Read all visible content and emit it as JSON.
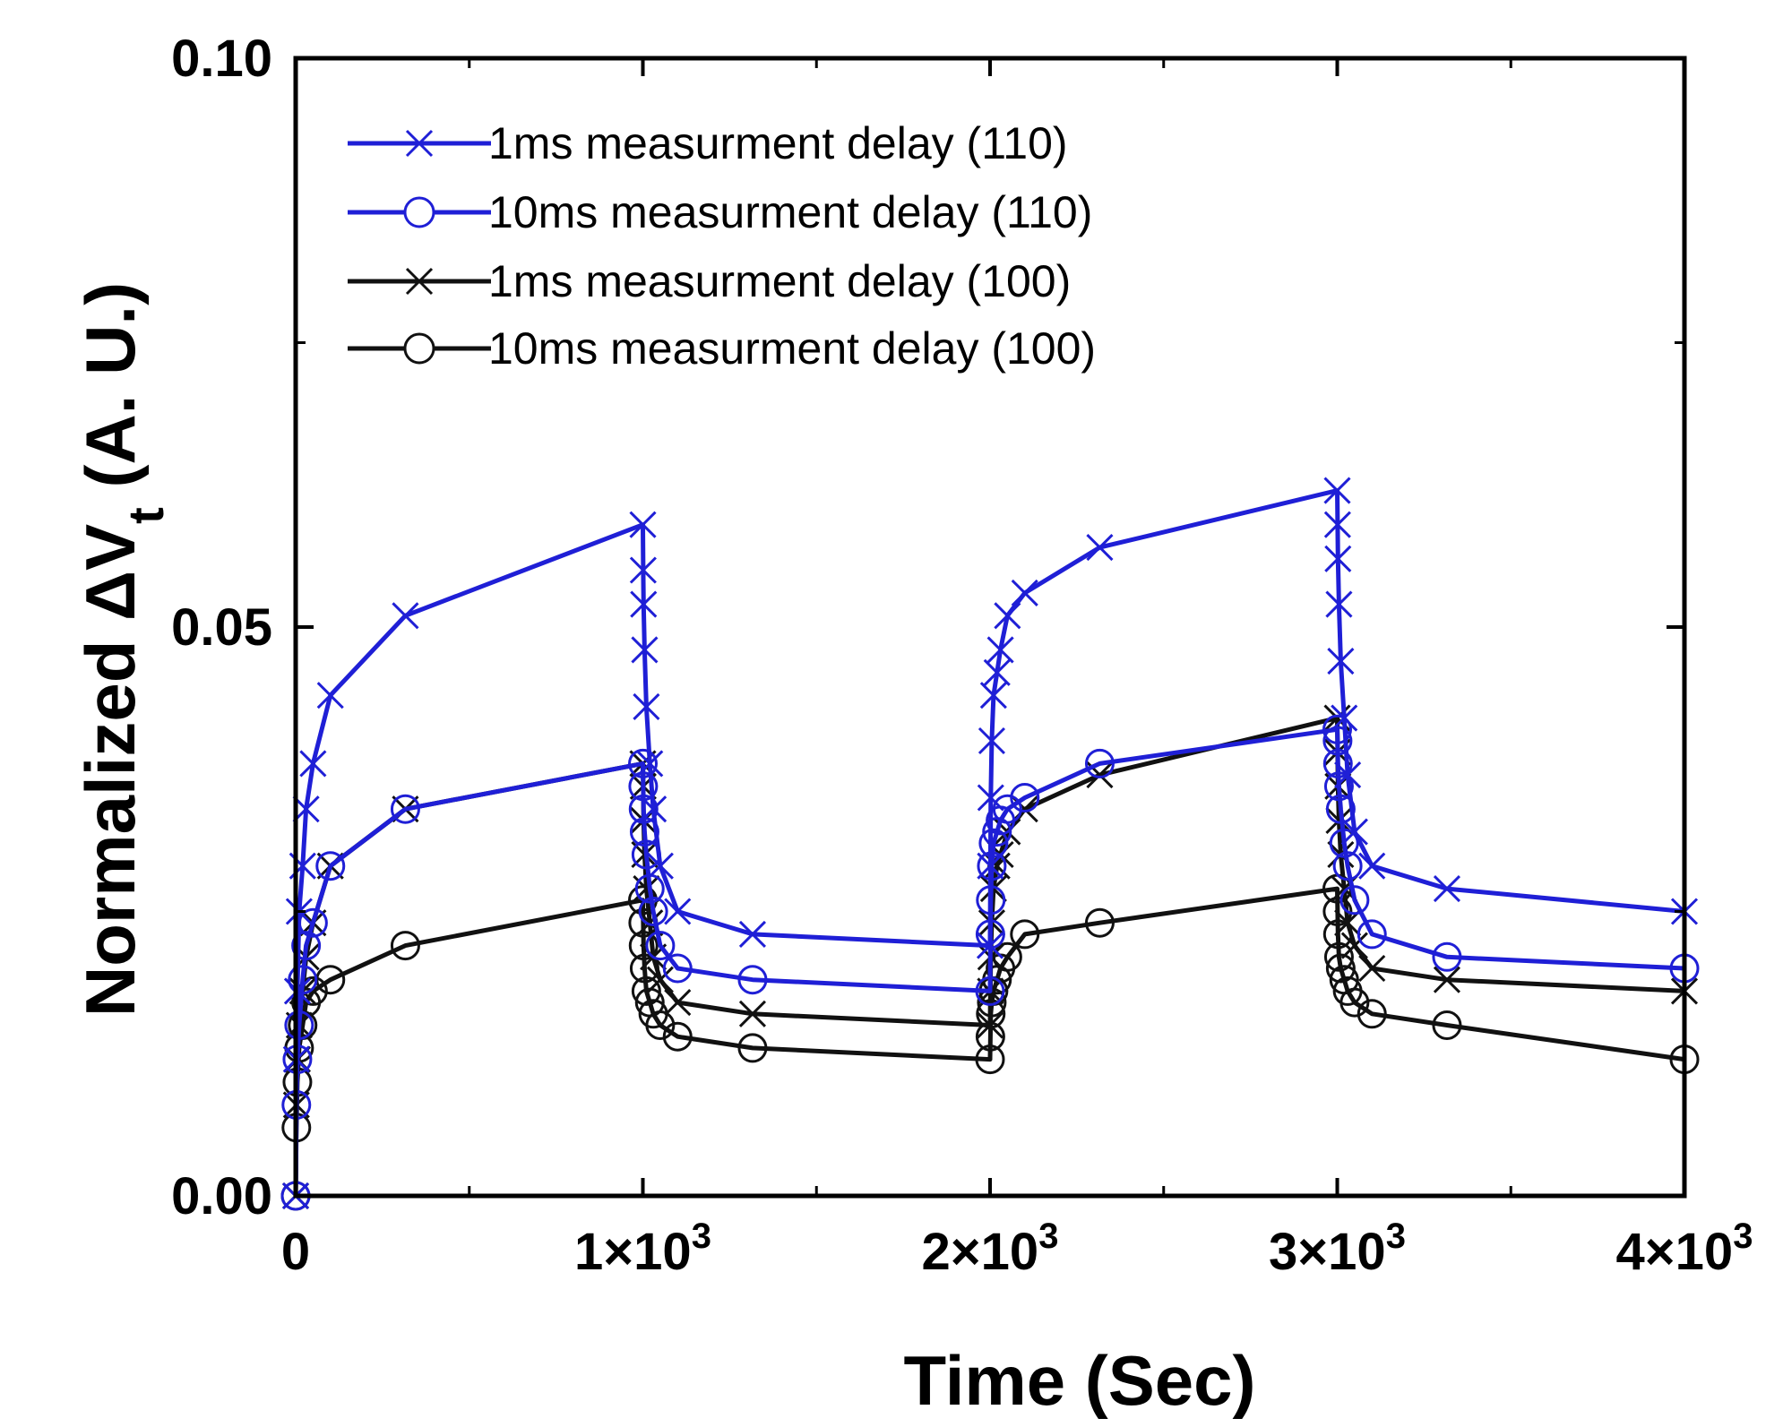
{
  "chart_data": {
    "type": "line",
    "title": "",
    "xlabel": "Time (Sec)",
    "ylabel_prefix": "Normalized ",
    "ylabel_symbol": "ΔV",
    "ylabel_subscript": "t",
    "ylabel_suffix": " (A. U.)",
    "xlim": [
      0,
      4000
    ],
    "ylim": [
      0,
      0.1
    ],
    "x_ticks": [
      {
        "value": 0,
        "base": "0",
        "exp": ""
      },
      {
        "value": 1000,
        "base": "1×10",
        "exp": "3"
      },
      {
        "value": 2000,
        "base": "2×10",
        "exp": "3"
      },
      {
        "value": 3000,
        "base": "3×10",
        "exp": "3"
      },
      {
        "value": 4000,
        "base": "4×10",
        "exp": "3"
      }
    ],
    "x_minor_ticks": [
      500,
      1500,
      2500,
      3500
    ],
    "y_ticks": [
      {
        "value": 0,
        "label": "0.00"
      },
      {
        "value": 0.05,
        "label": "0.05"
      },
      {
        "value": 0.1,
        "label": "0.10"
      }
    ],
    "y_minor_ticks": [
      0.025,
      0.075
    ],
    "grid": false,
    "legend_position": "top-left",
    "series": [
      {
        "name": "1ms measurment delay (110)",
        "color": "#1f1fd6",
        "marker": "x",
        "x": [
          0,
          2,
          5,
          10,
          20,
          30,
          50,
          100,
          316,
          1000,
          1001,
          1002,
          1005,
          1010,
          1020,
          1030,
          1050,
          1100,
          1316,
          2000,
          2001,
          2002,
          2005,
          2010,
          2020,
          2030,
          2050,
          2100,
          2316,
          3000,
          3001,
          3002,
          3005,
          3010,
          3020,
          3030,
          3050,
          3100,
          3316,
          4000
        ],
        "y": [
          0.0,
          0.012,
          0.018,
          0.025,
          0.029,
          0.034,
          0.038,
          0.044,
          0.051,
          0.059,
          0.055,
          0.052,
          0.048,
          0.043,
          0.038,
          0.034,
          0.029,
          0.025,
          0.023,
          0.022,
          0.029,
          0.035,
          0.04,
          0.044,
          0.046,
          0.048,
          0.051,
          0.053,
          0.057,
          0.062,
          0.059,
          0.056,
          0.052,
          0.047,
          0.042,
          0.037,
          0.032,
          0.029,
          0.027,
          0.025
        ]
      },
      {
        "name": "10ms measurment delay (110)",
        "color": "#1f1fd6",
        "marker": "o",
        "x": [
          0,
          2,
          5,
          10,
          20,
          30,
          50,
          100,
          316,
          1000,
          1001,
          1002,
          1005,
          1010,
          1020,
          1030,
          1050,
          1100,
          1316,
          2000,
          2001,
          2002,
          2005,
          2010,
          2020,
          2030,
          2050,
          2100,
          2316,
          3000,
          3001,
          3002,
          3005,
          3010,
          3020,
          3030,
          3050,
          3100,
          3316,
          4000
        ],
        "y": [
          0.0,
          0.008,
          0.012,
          0.015,
          0.019,
          0.022,
          0.024,
          0.029,
          0.034,
          0.038,
          0.036,
          0.034,
          0.032,
          0.03,
          0.027,
          0.025,
          0.022,
          0.02,
          0.019,
          0.018,
          0.023,
          0.026,
          0.029,
          0.031,
          0.032,
          0.033,
          0.034,
          0.035,
          0.038,
          0.041,
          0.04,
          0.038,
          0.036,
          0.034,
          0.031,
          0.029,
          0.026,
          0.023,
          0.021,
          0.02
        ]
      },
      {
        "name": "1ms measurment delay  (100)",
        "color": "#111111",
        "marker": "x",
        "x": [
          0,
          2,
          5,
          10,
          20,
          30,
          50,
          100,
          316,
          1000,
          1001,
          1002,
          1005,
          1010,
          1020,
          1030,
          1050,
          1100,
          1316,
          2000,
          2001,
          2002,
          2005,
          2010,
          2020,
          2030,
          2050,
          2100,
          2316,
          3000,
          3001,
          3002,
          3005,
          3010,
          3020,
          3030,
          3050,
          3100,
          3316,
          4000
        ],
        "y": [
          0.0,
          0.008,
          0.012,
          0.015,
          0.018,
          0.021,
          0.024,
          0.029,
          0.034,
          0.038,
          0.036,
          0.033,
          0.03,
          0.027,
          0.024,
          0.021,
          0.019,
          0.017,
          0.016,
          0.015,
          0.018,
          0.021,
          0.024,
          0.027,
          0.029,
          0.03,
          0.032,
          0.034,
          0.037,
          0.042,
          0.039,
          0.036,
          0.033,
          0.03,
          0.027,
          0.024,
          0.022,
          0.02,
          0.019,
          0.018
        ]
      },
      {
        "name": "10ms measurment delay  (100)",
        "color": "#111111",
        "marker": "o",
        "x": [
          0,
          2,
          5,
          10,
          20,
          30,
          50,
          100,
          316,
          1000,
          1001,
          1002,
          1005,
          1010,
          1020,
          1030,
          1050,
          1100,
          1316,
          2000,
          2001,
          2002,
          2005,
          2010,
          2020,
          2030,
          2050,
          2100,
          2316,
          3000,
          3001,
          3002,
          3005,
          3010,
          3020,
          3030,
          3050,
          3100,
          3316,
          4000
        ],
        "y": [
          0.0,
          0.006,
          0.01,
          0.013,
          0.015,
          0.017,
          0.018,
          0.019,
          0.022,
          0.026,
          0.024,
          0.022,
          0.02,
          0.018,
          0.017,
          0.016,
          0.015,
          0.014,
          0.013,
          0.012,
          0.014,
          0.016,
          0.017,
          0.018,
          0.019,
          0.02,
          0.021,
          0.023,
          0.024,
          0.027,
          0.025,
          0.023,
          0.021,
          0.02,
          0.019,
          0.018,
          0.017,
          0.016,
          0.015,
          0.012
        ]
      }
    ]
  }
}
